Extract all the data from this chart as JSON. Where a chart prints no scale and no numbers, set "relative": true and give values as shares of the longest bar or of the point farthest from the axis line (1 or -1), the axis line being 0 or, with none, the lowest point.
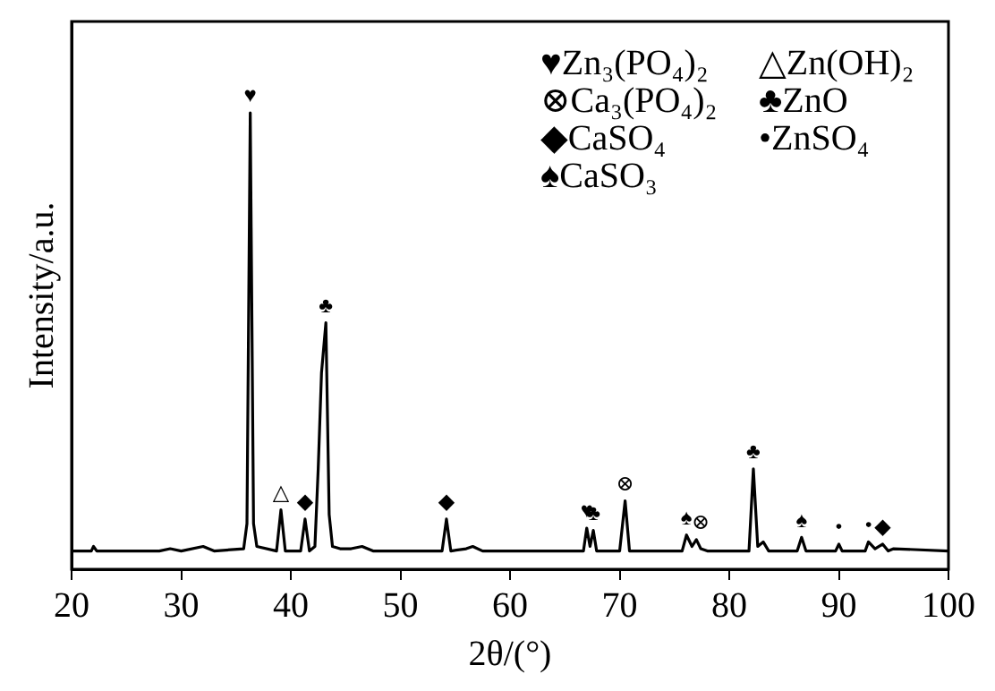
{
  "chart_data": {
    "type": "line",
    "relative": true,
    "xlabel": "2θ/(°)",
    "ylabel": "Intensity/a.u.",
    "xlim": [
      20,
      100
    ],
    "xticks": [
      20,
      30,
      40,
      50,
      60,
      70,
      80,
      90,
      100
    ],
    "grid": false,
    "legend": false,
    "marker": "none",
    "line_style": "solid",
    "tick_labels": "x",
    "series": [
      {
        "color": "#000000",
        "x": [
          20,
          21.8,
          22,
          22.3,
          28,
          29,
          30,
          32,
          33,
          35.7,
          36.0,
          36.3,
          36.6,
          36.9,
          38.7,
          39.1,
          39.5,
          40.9,
          41.3,
          41.7,
          42.2,
          42.5,
          42.8,
          43.2,
          43.5,
          43.8,
          44.5,
          45.5,
          46.5,
          47.5,
          53.8,
          54.2,
          54.6,
          56,
          56.6,
          57.5,
          66.7,
          67.0,
          67.3,
          67.6,
          67.9,
          70.0,
          70.5,
          70.9,
          75.7,
          76.1,
          76.6,
          77.0,
          77.4,
          78,
          81.8,
          82.2,
          82.6,
          83.1,
          83.6,
          86.2,
          86.6,
          87.0,
          89.7,
          90.0,
          90.3,
          92.4,
          92.7,
          93.3,
          94.0,
          94.5,
          95,
          100
        ],
        "values": [
          0.04,
          0.04,
          0.05,
          0.04,
          0.04,
          0.045,
          0.04,
          0.05,
          0.04,
          0.045,
          0.1,
          1.0,
          0.1,
          0.05,
          0.04,
          0.13,
          0.04,
          0.04,
          0.11,
          0.04,
          0.05,
          0.22,
          0.43,
          0.54,
          0.12,
          0.05,
          0.045,
          0.045,
          0.05,
          0.04,
          0.04,
          0.11,
          0.04,
          0.045,
          0.05,
          0.04,
          0.04,
          0.09,
          0.05,
          0.085,
          0.04,
          0.04,
          0.15,
          0.04,
          0.04,
          0.075,
          0.05,
          0.065,
          0.045,
          0.04,
          0.04,
          0.22,
          0.05,
          0.06,
          0.04,
          0.04,
          0.07,
          0.04,
          0.04,
          0.055,
          0.04,
          0.04,
          0.06,
          0.045,
          0.055,
          0.04,
          0.045,
          0.04
        ]
      }
    ],
    "annotations": [
      "♥Zn₃(PO₄)₂",
      "△Zn(OH)₂",
      "⊗Ca₃(PO₄)₂",
      "♣ZnO",
      "◆CaSO₄",
      "•ZnSO₄",
      "♠CaSO₃",
      {
        "text": "♥",
        "x": 36.3,
        "y": 1.0
      },
      {
        "text": "△",
        "x": 39.1,
        "y": 0.13
      },
      {
        "text": "◆",
        "x": 41.3,
        "y": 0.11
      },
      {
        "text": "♣",
        "x": 43.2,
        "y": 0.54
      },
      {
        "text": "◆",
        "x": 54.2,
        "y": 0.11
      },
      {
        "text": "♥",
        "x": 67.0,
        "y": 0.09
      },
      {
        "text": "♣",
        "x": 67.6,
        "y": 0.085
      },
      {
        "text": "⊗",
        "x": 70.5,
        "y": 0.15
      },
      {
        "text": "♠",
        "x": 76.1,
        "y": 0.075
      },
      {
        "text": "⊗",
        "x": 77.4,
        "y": 0.065
      },
      {
        "text": "♣",
        "x": 82.2,
        "y": 0.22
      },
      {
        "text": "♠",
        "x": 86.6,
        "y": 0.07
      },
      {
        "text": "•",
        "x": 90.0,
        "y": 0.055
      },
      {
        "text": "•",
        "x": 92.7,
        "y": 0.06
      },
      {
        "text": "◆",
        "x": 94.0,
        "y": 0.055
      }
    ]
  }
}
